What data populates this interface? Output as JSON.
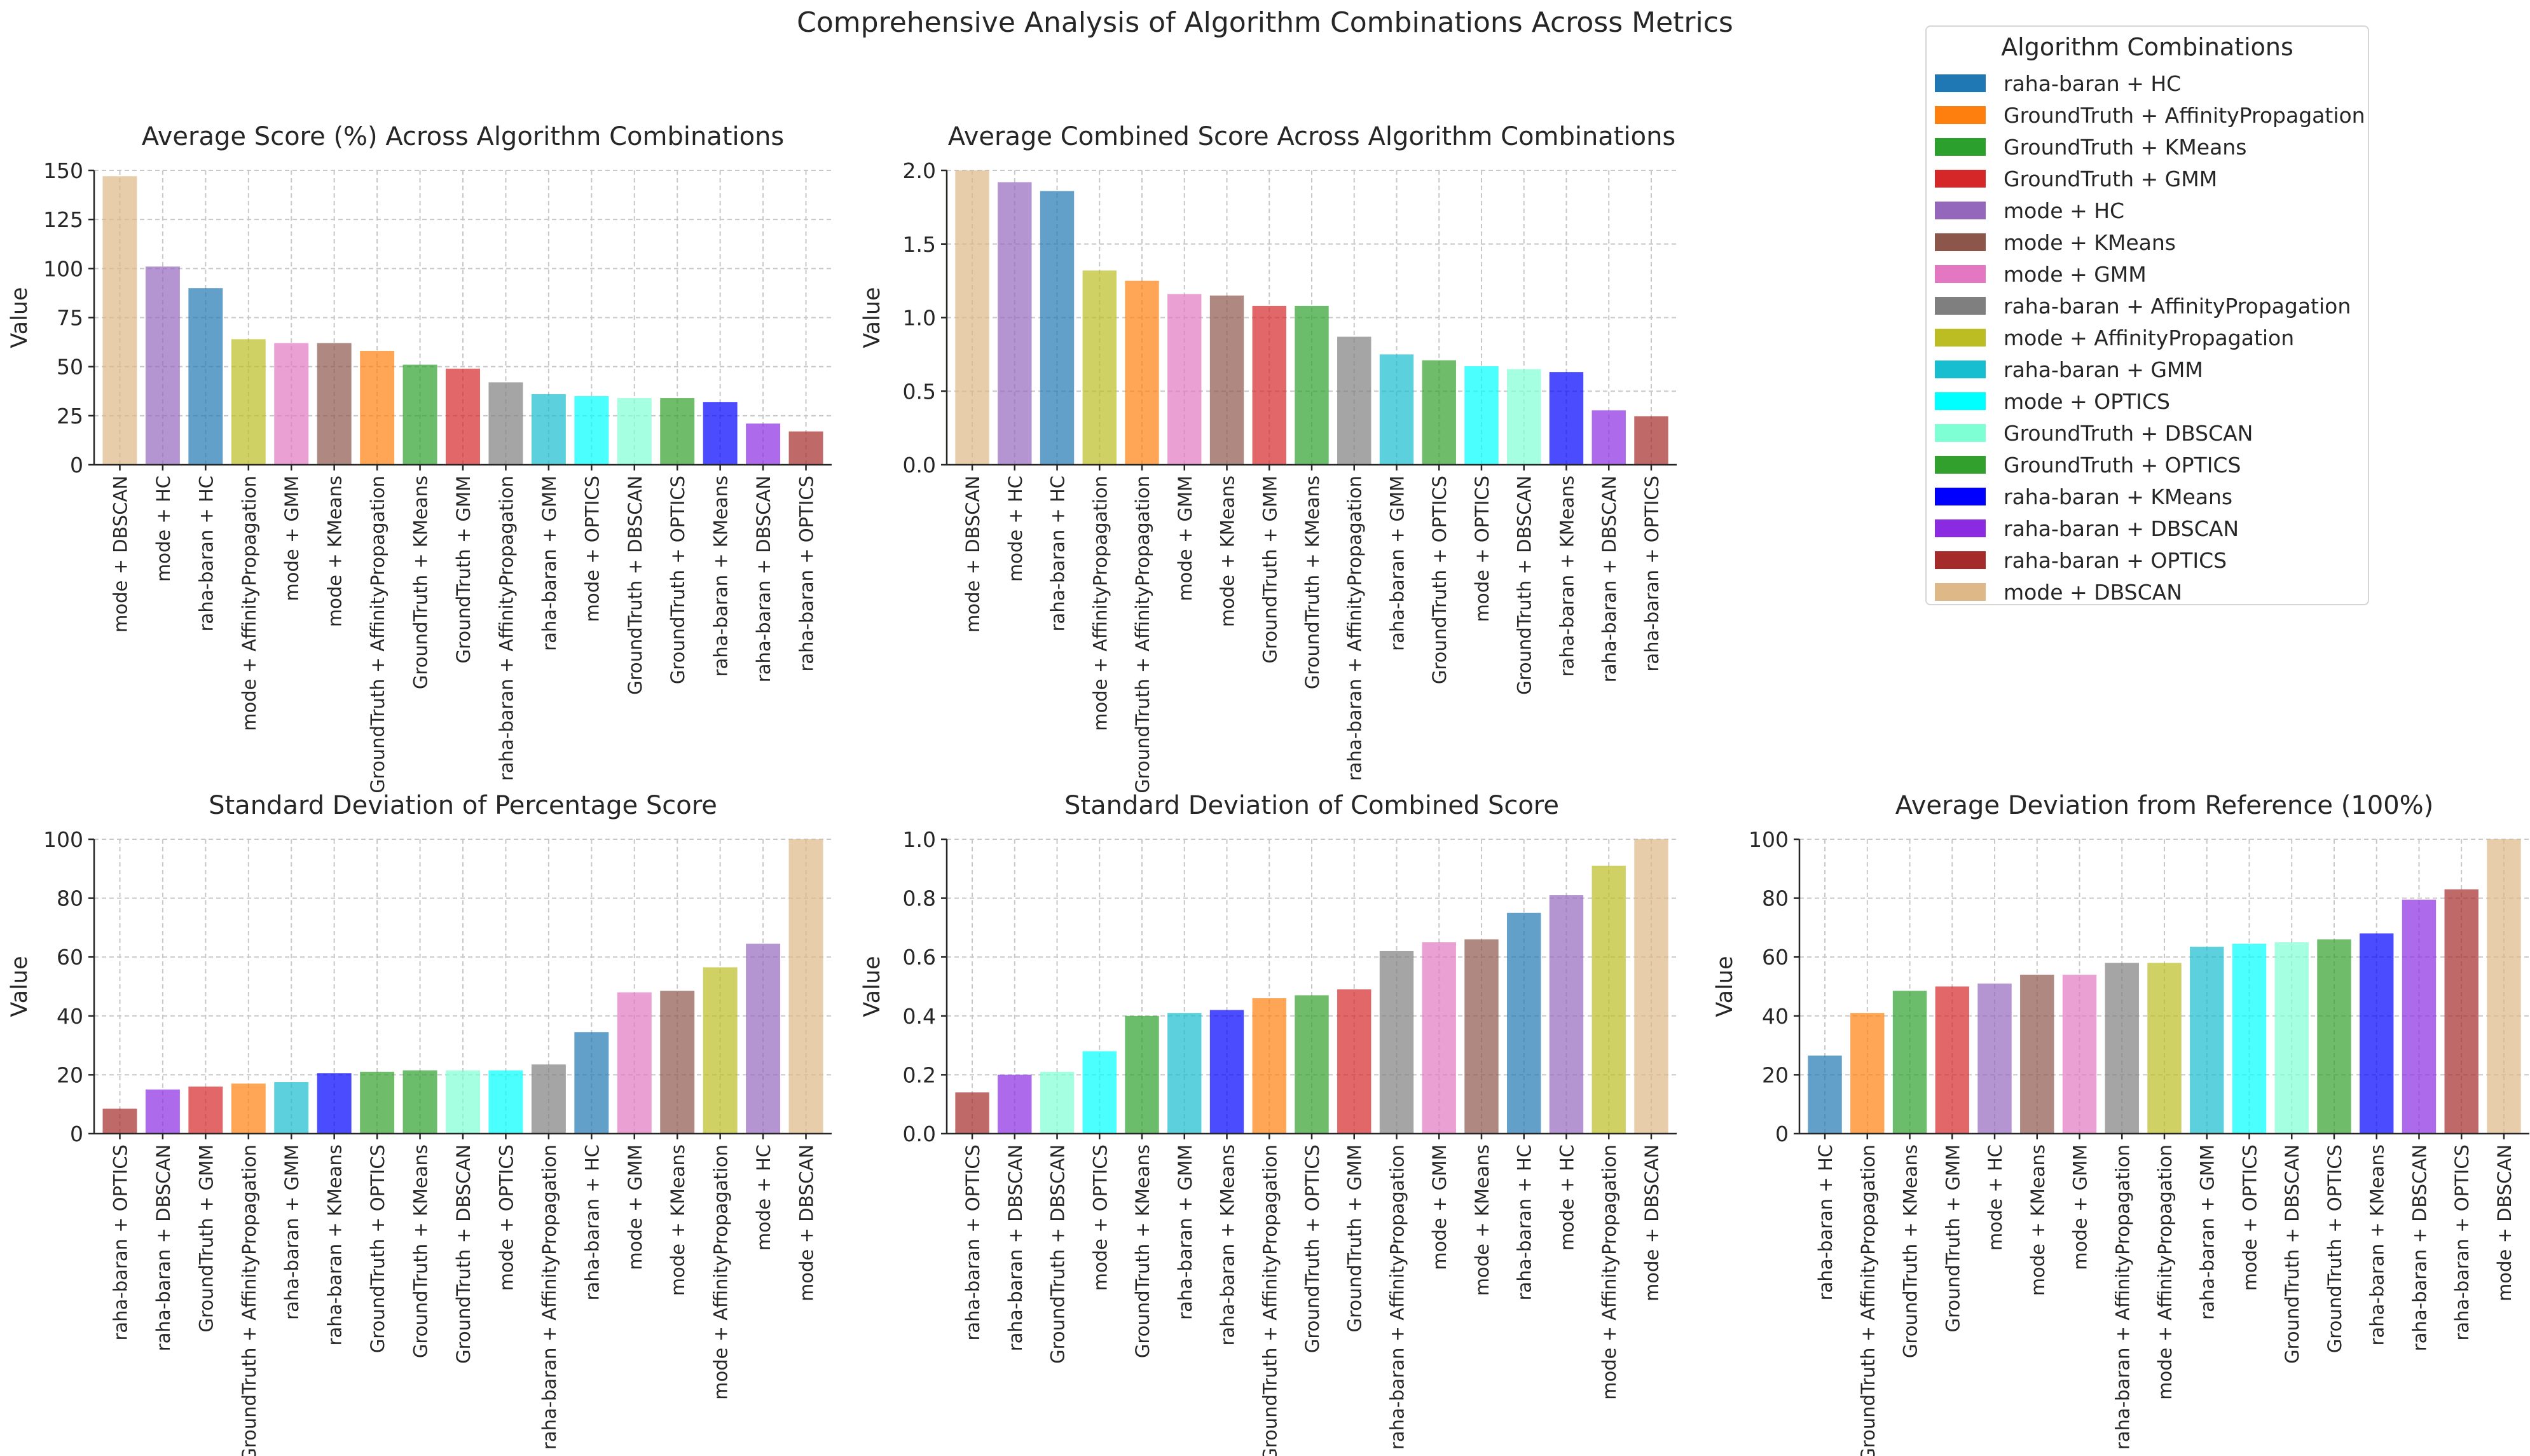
{
  "figure": {
    "suptitle": "Comprehensive Analysis of Algorithm Combinations Across Metrics"
  },
  "legend": {
    "title": "Algorithm Combinations",
    "placement": "top-right",
    "items": [
      {
        "label": "raha-baran + HC",
        "color": "#1f77b4"
      },
      {
        "label": "GroundTruth + AffinityPropagation",
        "color": "#ff7f0e"
      },
      {
        "label": "GroundTruth + KMeans",
        "color": "#2ca02c"
      },
      {
        "label": "GroundTruth + GMM",
        "color": "#d62728"
      },
      {
        "label": "mode + HC",
        "color": "#9467bd"
      },
      {
        "label": "mode + KMeans",
        "color": "#8c564b"
      },
      {
        "label": "mode + GMM",
        "color": "#e377c2"
      },
      {
        "label": "raha-baran + AffinityPropagation",
        "color": "#7f7f7f"
      },
      {
        "label": "mode + AffinityPropagation",
        "color": "#bcbd22"
      },
      {
        "label": "raha-baran + GMM",
        "color": "#17becf"
      },
      {
        "label": "mode + OPTICS",
        "color": "#00ffff"
      },
      {
        "label": "GroundTruth + DBSCAN",
        "color": "#7fffd4"
      },
      {
        "label": "GroundTruth + OPTICS",
        "color": "#32a02c"
      },
      {
        "label": "raha-baran + KMeans",
        "color": "#0000ff"
      },
      {
        "label": "raha-baran + DBSCAN",
        "color": "#8a2be2"
      },
      {
        "label": "raha-baran + OPTICS",
        "color": "#a52a2a"
      },
      {
        "label": "mode + DBSCAN",
        "color": "#deb887"
      }
    ]
  },
  "chart_data": [
    {
      "type": "bar",
      "title": "Average Score (%) Across Algorithm Combinations",
      "xlabel": "",
      "ylabel": "Value",
      "ylim": [
        0,
        150
      ],
      "yticks": [
        0,
        25,
        50,
        75,
        100,
        125,
        150
      ],
      "grid": true,
      "categories": [
        "mode + DBSCAN",
        "mode + HC",
        "raha-baran + HC",
        "mode + AffinityPropagation",
        "mode + GMM",
        "mode + KMeans",
        "GroundTruth + AffinityPropagation",
        "GroundTruth + KMeans",
        "GroundTruth + GMM",
        "raha-baran + AffinityPropagation",
        "raha-baran + GMM",
        "mode + OPTICS",
        "GroundTruth + DBSCAN",
        "GroundTruth + OPTICS",
        "raha-baran + KMeans",
        "raha-baran + DBSCAN",
        "raha-baran + OPTICS"
      ],
      "values": [
        147,
        101,
        90,
        64,
        62,
        62,
        58,
        51,
        49,
        42,
        36,
        35,
        34,
        34,
        32,
        21,
        17
      ]
    },
    {
      "type": "bar",
      "title": "Average Combined Score Across Algorithm Combinations",
      "xlabel": "",
      "ylabel": "Value",
      "ylim": [
        0,
        2.0
      ],
      "yticks": [
        0.0,
        0.5,
        1.0,
        1.5,
        2.0
      ],
      "grid": true,
      "categories": [
        "mode + DBSCAN",
        "mode + HC",
        "raha-baran + HC",
        "mode + AffinityPropagation",
        "GroundTruth + AffinityPropagation",
        "mode + GMM",
        "mode + KMeans",
        "GroundTruth + GMM",
        "GroundTruth + KMeans",
        "raha-baran + AffinityPropagation",
        "raha-baran + GMM",
        "GroundTruth + OPTICS",
        "mode + OPTICS",
        "GroundTruth + DBSCAN",
        "raha-baran + KMeans",
        "raha-baran + DBSCAN",
        "raha-baran + OPTICS"
      ],
      "values": [
        2.0,
        1.92,
        1.86,
        1.32,
        1.25,
        1.16,
        1.15,
        1.08,
        1.08,
        0.87,
        0.75,
        0.71,
        0.67,
        0.65,
        0.63,
        0.37,
        0.33
      ]
    },
    {
      "type": "bar",
      "title": "Standard Deviation of Percentage Score",
      "xlabel": "",
      "ylabel": "Value",
      "ylim": [
        0,
        100
      ],
      "yticks": [
        0,
        20,
        40,
        60,
        80,
        100
      ],
      "grid": true,
      "categories": [
        "raha-baran + OPTICS",
        "raha-baran + DBSCAN",
        "GroundTruth + GMM",
        "GroundTruth + AffinityPropagation",
        "raha-baran + GMM",
        "raha-baran + KMeans",
        "GroundTruth + OPTICS",
        "GroundTruth + KMeans",
        "GroundTruth + DBSCAN",
        "mode + OPTICS",
        "raha-baran + AffinityPropagation",
        "raha-baran + HC",
        "mode + GMM",
        "mode + KMeans",
        "mode + AffinityPropagation",
        "mode + HC",
        "mode + DBSCAN"
      ],
      "values": [
        8.5,
        15,
        16,
        17,
        17.5,
        20.5,
        21,
        21.5,
        21.5,
        21.5,
        23.5,
        34.5,
        48,
        48.5,
        56.5,
        64.5,
        100
      ]
    },
    {
      "type": "bar",
      "title": "Standard Deviation of Combined Score",
      "xlabel": "",
      "ylabel": "Value",
      "ylim": [
        0,
        1.0
      ],
      "yticks": [
        0.0,
        0.2,
        0.4,
        0.6,
        0.8,
        1.0
      ],
      "grid": true,
      "categories": [
        "raha-baran + OPTICS",
        "raha-baran + DBSCAN",
        "GroundTruth + DBSCAN",
        "mode + OPTICS",
        "GroundTruth + KMeans",
        "raha-baran + GMM",
        "raha-baran + KMeans",
        "GroundTruth + AffinityPropagation",
        "GroundTruth + OPTICS",
        "GroundTruth + GMM",
        "raha-baran + AffinityPropagation",
        "mode + GMM",
        "mode + KMeans",
        "raha-baran + HC",
        "mode + HC",
        "mode + AffinityPropagation",
        "mode + DBSCAN"
      ],
      "values": [
        0.14,
        0.2,
        0.21,
        0.28,
        0.4,
        0.41,
        0.42,
        0.46,
        0.47,
        0.49,
        0.62,
        0.65,
        0.66,
        0.75,
        0.81,
        0.91,
        1.0
      ]
    },
    {
      "type": "bar",
      "title": "Average Deviation from Reference (100%)",
      "xlabel": "",
      "ylabel": "Value",
      "ylim": [
        0,
        100
      ],
      "yticks": [
        0,
        20,
        40,
        60,
        80,
        100
      ],
      "grid": true,
      "categories": [
        "raha-baran + HC",
        "GroundTruth + AffinityPropagation",
        "GroundTruth + KMeans",
        "GroundTruth + GMM",
        "mode + HC",
        "mode + KMeans",
        "mode + GMM",
        "raha-baran + AffinityPropagation",
        "mode + AffinityPropagation",
        "raha-baran + GMM",
        "mode + OPTICS",
        "GroundTruth + DBSCAN",
        "GroundTruth + OPTICS",
        "raha-baran + KMeans",
        "raha-baran + DBSCAN",
        "raha-baran + OPTICS",
        "mode + DBSCAN"
      ],
      "values": [
        26.5,
        41,
        48.5,
        50,
        51,
        54,
        54,
        58,
        58,
        63.5,
        64.5,
        65,
        66,
        68,
        79.5,
        83,
        100
      ]
    }
  ]
}
